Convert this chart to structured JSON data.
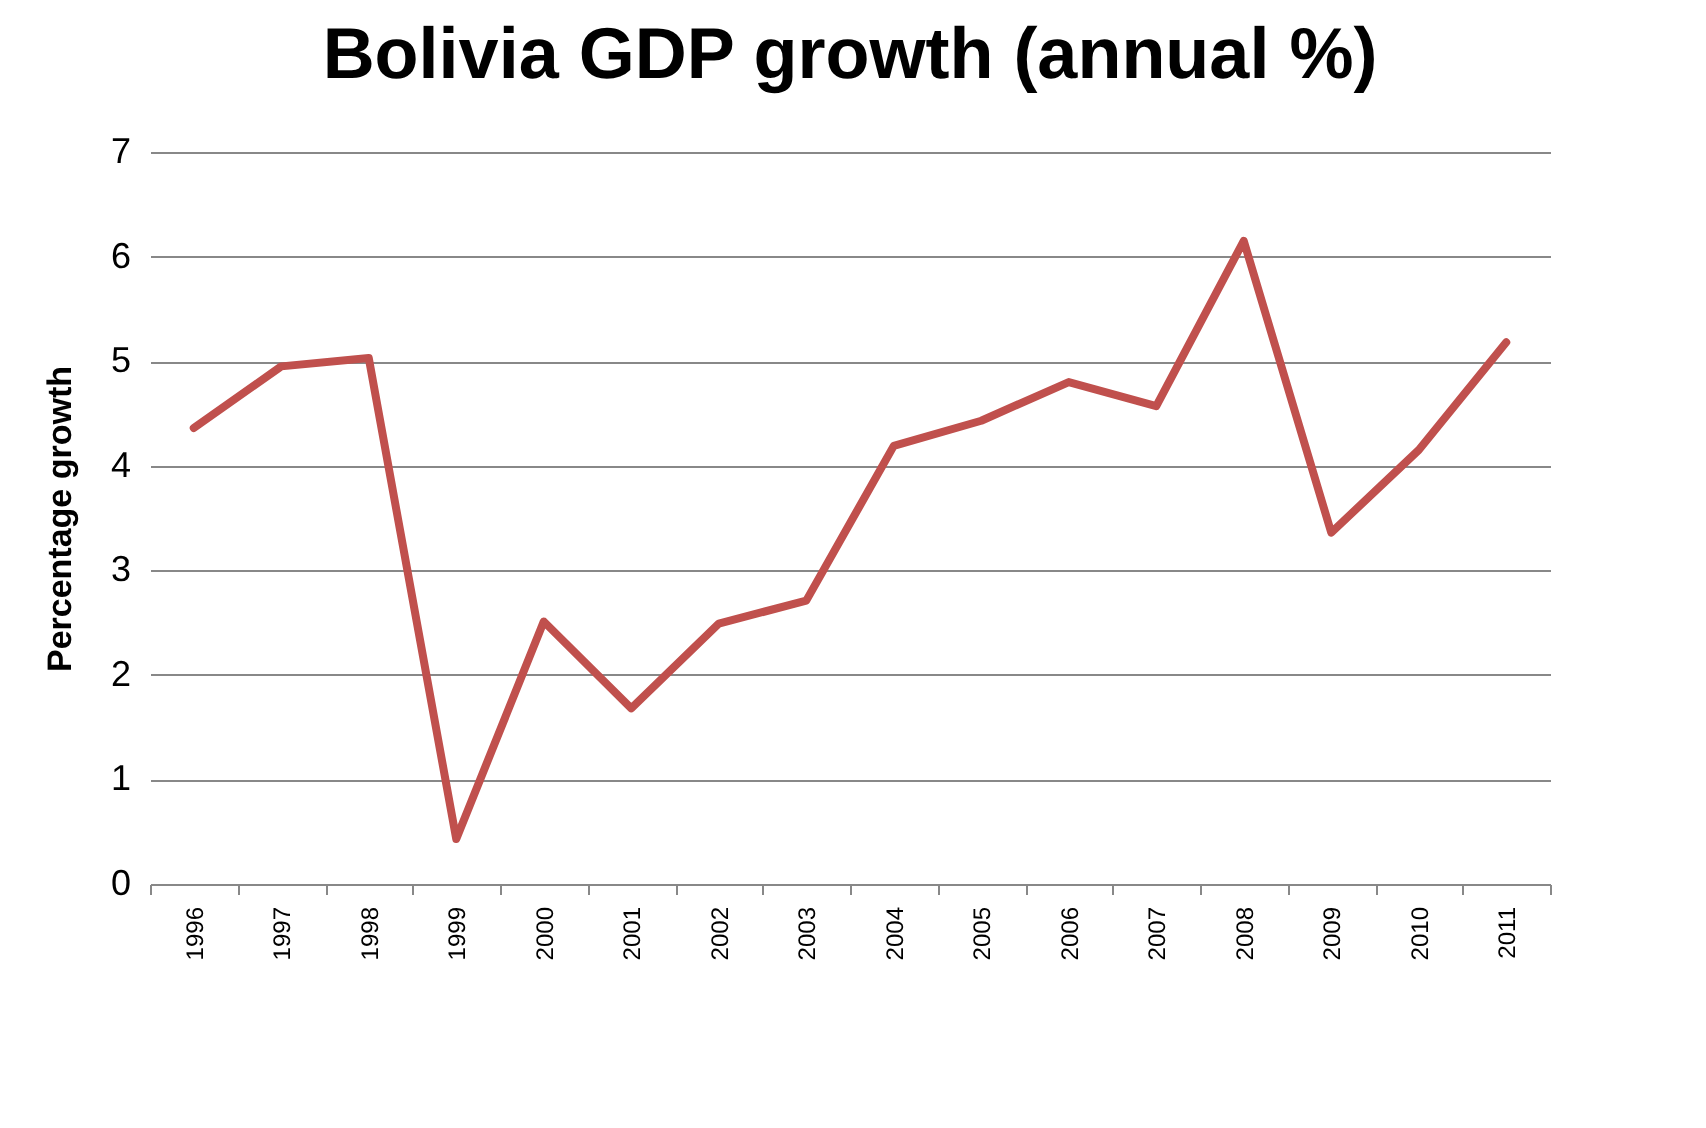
{
  "chart_data": {
    "type": "line",
    "title": "Bolivia GDP growth (annual %)",
    "ylabel": "Percentage growth",
    "categories": [
      "1996",
      "1997",
      "1998",
      "1999",
      "2000",
      "2001",
      "2002",
      "2003",
      "2004",
      "2005",
      "2006",
      "2007",
      "2008",
      "2009",
      "2010",
      "2011"
    ],
    "series": [
      {
        "color": "#c0504d",
        "values": [
          4.36,
          4.95,
          5.03,
          0.43,
          2.51,
          1.68,
          2.49,
          2.71,
          4.19,
          4.43,
          4.8,
          4.57,
          6.15,
          3.36,
          4.15,
          5.18
        ]
      }
    ],
    "ylim": [
      0,
      7
    ],
    "yticks": [
      0,
      1,
      2,
      3,
      4,
      5,
      6,
      7
    ],
    "grid": "y"
  }
}
